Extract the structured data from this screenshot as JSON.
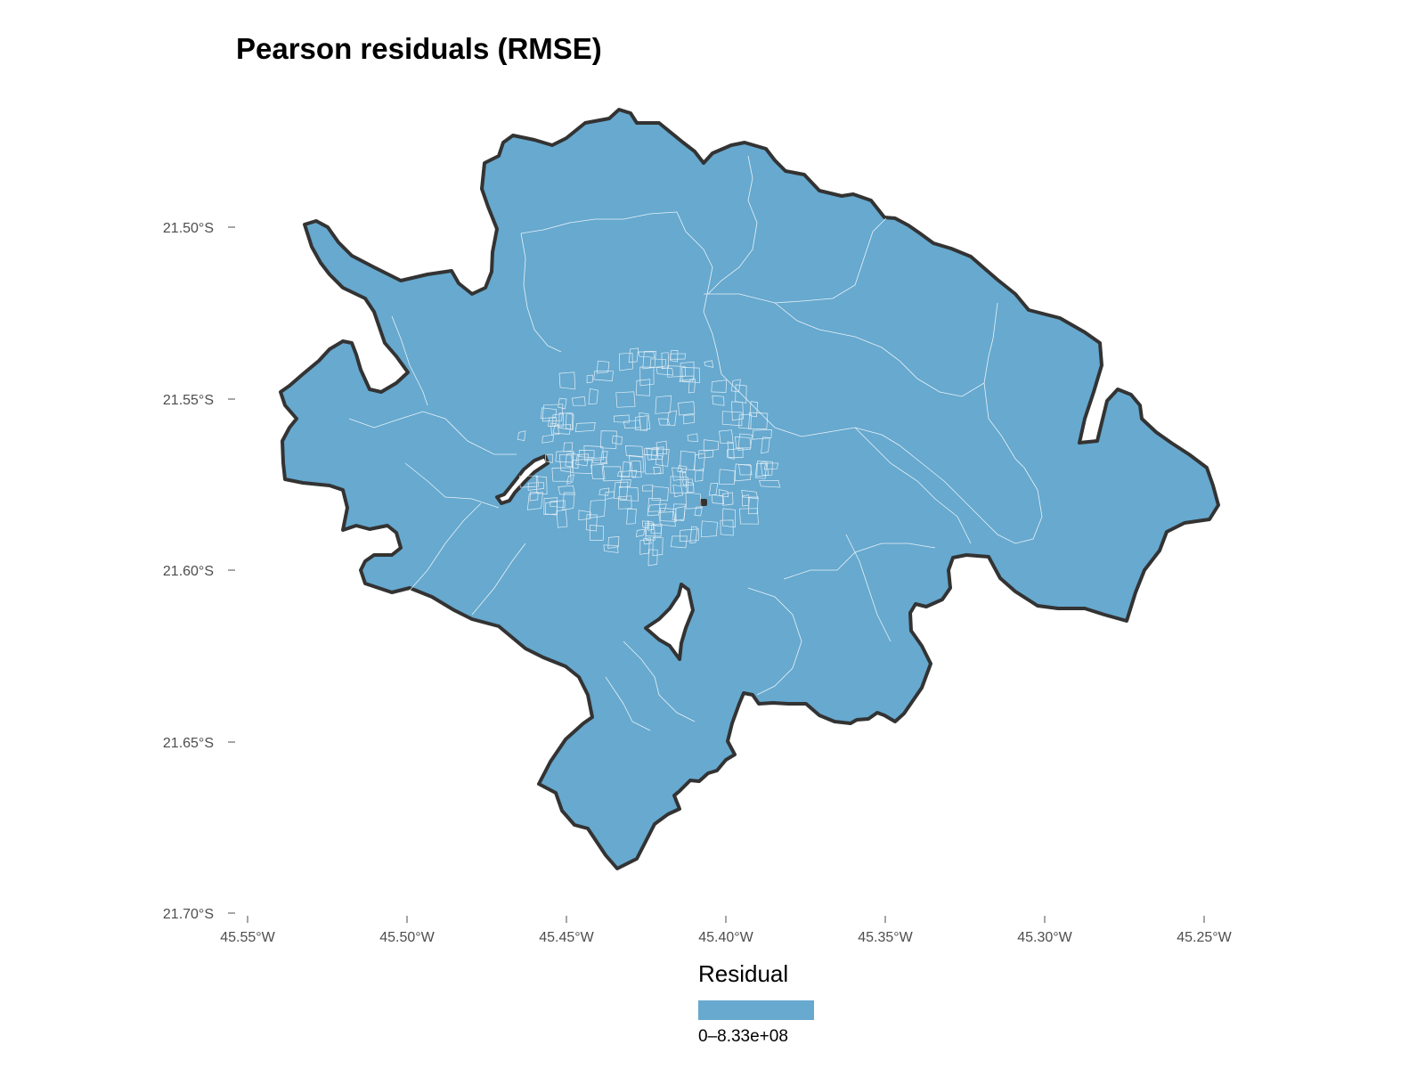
{
  "title": "Pearson residuals (RMSE)",
  "axes": {
    "y_ticks": [
      "21.50°S",
      "21.55°S",
      "21.60°S",
      "21.65°S",
      "21.70°S"
    ],
    "x_ticks": [
      "45.55°W",
      "45.50°W",
      "45.45°W",
      "45.40°W",
      "45.35°W",
      "45.30°W",
      "45.25°W"
    ]
  },
  "legend": {
    "title": "Residual",
    "entries": [
      {
        "label": "0–8.33e+08",
        "color": "#67a9cf"
      }
    ]
  },
  "colors": {
    "fill": "#67a9cf",
    "border": "#333333",
    "internal_lines": "#ffffff",
    "holes": "#ffffff"
  }
}
